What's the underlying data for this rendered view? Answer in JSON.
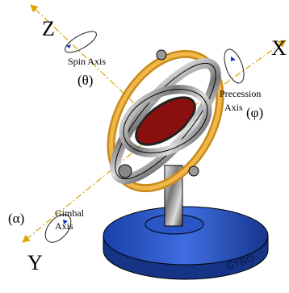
{
  "axes": {
    "z": "Z",
    "x": "X",
    "y": "Y"
  },
  "spin": {
    "label": "Spin Axis",
    "symbol": "(θ)"
  },
  "precession": {
    "label_lines": [
      "Precession",
      "Axis"
    ],
    "symbol": "(φ)"
  },
  "gimbal": {
    "label_lines": [
      "Gimbal",
      "Axis"
    ],
    "symbol": "(α)"
  },
  "base_label": "GYRO"
}
